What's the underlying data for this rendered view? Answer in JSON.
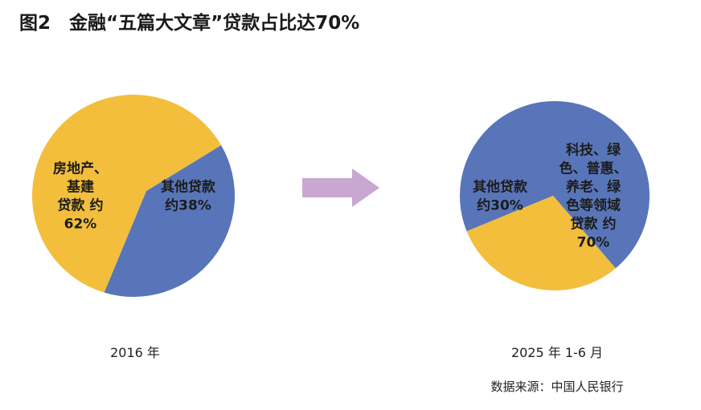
{
  "figure": {
    "title": "图2　金融“五篇大文章”贷款占比达70%",
    "source": "数据来源：中国人民银行",
    "colors": {
      "yellow": "#F2BE3C",
      "blue": "#5975B9",
      "arrow": "#C9A7D1"
    }
  },
  "chart_data": [
    {
      "type": "pie",
      "period_label": "2016 年",
      "slices": [
        {
          "label_lines": [
            "其他贷款",
            "约38%"
          ],
          "value": 38,
          "color": "#5975B9"
        },
        {
          "label_lines": [
            "房地产、",
            "基建",
            "贷款 约",
            "62%"
          ],
          "value": 62,
          "color": "#F2BE3C"
        }
      ]
    },
    {
      "type": "pie",
      "period_label": "2025 年 1-6 月",
      "slices": [
        {
          "label_lines": [
            "科技、绿",
            "色、普惠、",
            "养老、绿",
            "色等领域",
            "贷款 约",
            "70%"
          ],
          "value": 70,
          "color": "#5975B9"
        },
        {
          "label_lines": [
            "其他贷款",
            "约30%"
          ],
          "value": 30,
          "color": "#F2BE3C"
        }
      ]
    }
  ]
}
